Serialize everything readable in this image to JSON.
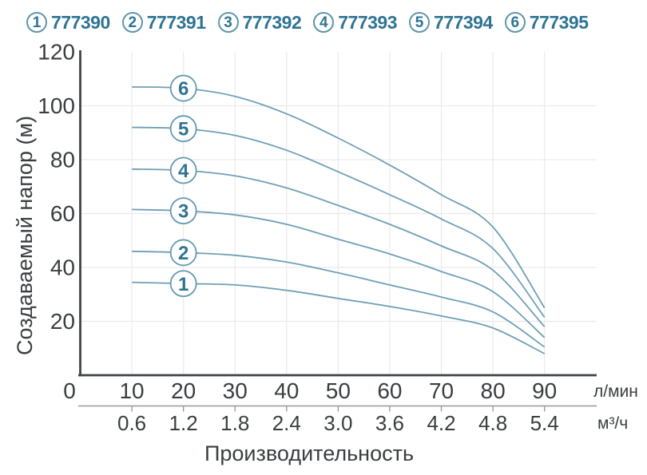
{
  "legend": {
    "items": [
      {
        "num": "1",
        "code": "777390"
      },
      {
        "num": "2",
        "code": "777391"
      },
      {
        "num": "3",
        "code": "777392"
      },
      {
        "num": "4",
        "code": "777393"
      },
      {
        "num": "5",
        "code": "777394"
      },
      {
        "num": "6",
        "code": "777395"
      }
    ]
  },
  "chart_data": {
    "type": "line",
    "title": "",
    "xlabel": "Производительность",
    "ylabel": "Создаваемый напор (м)",
    "x_unit_primary": "л/мин",
    "x_unit_secondary": "м³/ч",
    "xlim": [
      0,
      100
    ],
    "ylim": [
      0,
      120
    ],
    "grid": true,
    "legend_position": "top",
    "x": [
      10,
      20,
      30,
      40,
      50,
      60,
      70,
      80,
      90
    ],
    "x_ticks_primary": [
      "0",
      "10",
      "20",
      "30",
      "40",
      "50",
      "60",
      "70",
      "80",
      "90"
    ],
    "x_ticks_secondary": [
      "0.6",
      "1.2",
      "1.8",
      "2.4",
      "3.0",
      "3.6",
      "4.2",
      "4.8",
      "5.4"
    ],
    "y_ticks": [
      20,
      40,
      60,
      80,
      100,
      120
    ],
    "marker_at_x": 20,
    "series": [
      {
        "label": "1",
        "name": "777390",
        "values": [
          34.5,
          34.0,
          33.5,
          31.5,
          28.5,
          25.5,
          22.0,
          17.5,
          8.0
        ]
      },
      {
        "label": "2",
        "name": "777391",
        "values": [
          46.0,
          45.5,
          44.5,
          42.0,
          38.0,
          33.5,
          29.0,
          23.5,
          10.5
        ]
      },
      {
        "label": "3",
        "name": "777392",
        "values": [
          61.5,
          61.0,
          59.5,
          56.0,
          50.5,
          45.0,
          38.5,
          31.0,
          14.0
        ]
      },
      {
        "label": "4",
        "name": "777393",
        "values": [
          76.5,
          76.0,
          74.0,
          69.5,
          63.0,
          56.0,
          48.0,
          39.0,
          18.0
        ]
      },
      {
        "label": "5",
        "name": "777394",
        "values": [
          92.0,
          91.5,
          89.0,
          83.5,
          75.5,
          67.0,
          58.0,
          47.0,
          21.5
        ]
      },
      {
        "label": "6",
        "name": "777395",
        "values": [
          107.0,
          106.5,
          103.5,
          97.0,
          88.0,
          78.0,
          67.0,
          55.0,
          25.0
        ]
      }
    ],
    "colors": {
      "curve": "#6f9fb6",
      "marker_ring": "#639aaf",
      "marker_number": "#2f7493",
      "legend_text": "#2f7493",
      "axis_text": "#3a3e40",
      "axis_line": "#3e4347",
      "grid_line": "#e9eaeb",
      "secondary_axis": "#949899",
      "background": "#ffffff"
    }
  }
}
